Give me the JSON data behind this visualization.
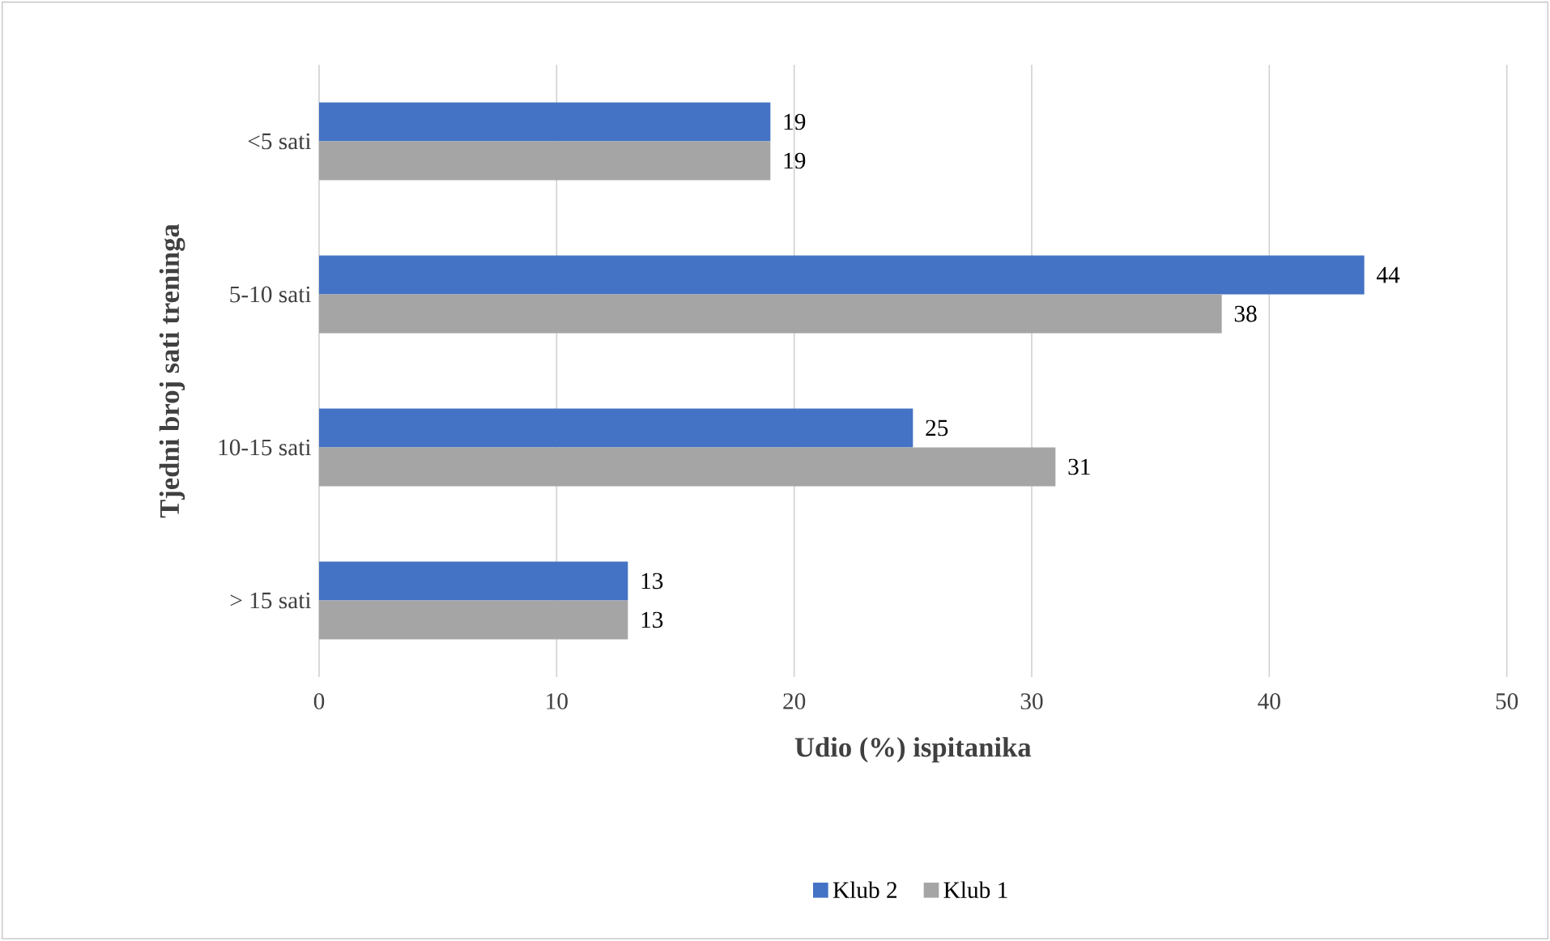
{
  "chart_data": {
    "type": "bar",
    "orientation": "horizontal",
    "xlabel": "Udio (%) ispitanika",
    "ylabel": "Tjedni broj sati treninga",
    "categories": [
      "<5 sati",
      "5-10 sati",
      "10-15 sati",
      "> 15 sati"
    ],
    "series": [
      {
        "name": "Klub 2",
        "color": "#4472c4",
        "values": [
          19,
          44,
          25,
          13
        ]
      },
      {
        "name": "Klub 1",
        "color": "#a5a5a5",
        "values": [
          19,
          38,
          31,
          13
        ]
      }
    ],
    "xlim": [
      0,
      50
    ],
    "xticks": [
      0,
      10,
      20,
      30,
      40,
      50
    ],
    "grid": "x",
    "legend": "bottom",
    "data_labels": true
  }
}
